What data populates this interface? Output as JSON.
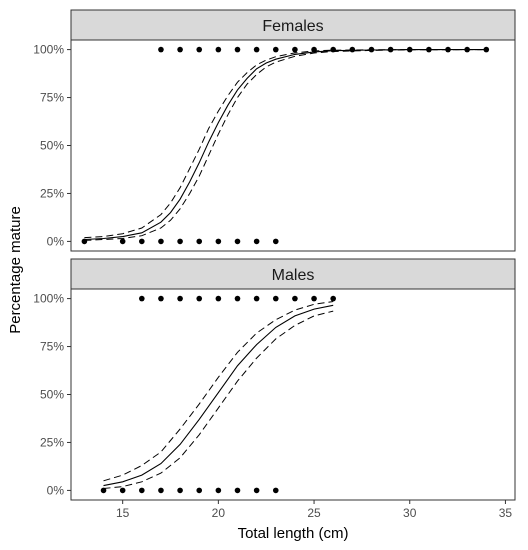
{
  "chart_data": {
    "type": "scatter",
    "xlabel": "Total length (cm)",
    "ylabel": "Percentage mature",
    "xlim": [
      12.3,
      35.5
    ],
    "ylim": [
      -0.05,
      1.05
    ],
    "x_ticks": [
      15,
      20,
      25,
      30,
      35
    ],
    "y_ticks": [
      0,
      0.25,
      0.5,
      0.75,
      1.0
    ],
    "y_tick_labels": [
      "0%",
      "25%",
      "50%",
      "75%",
      "100%"
    ],
    "grid": false,
    "panels": [
      {
        "strip_label": "Females",
        "points_mature": [
          17,
          18,
          19,
          20,
          21,
          22,
          23,
          24,
          25,
          26,
          27,
          28,
          29,
          30,
          31,
          32,
          33,
          34
        ],
        "points_immature": [
          13,
          15,
          16,
          17,
          18,
          19,
          20,
          21,
          22,
          23
        ],
        "curve_x": [
          13,
          14,
          15,
          16,
          17,
          17.5,
          18,
          18.5,
          19,
          19.5,
          20,
          20.5,
          21,
          21.5,
          22,
          22.5,
          23,
          24,
          25,
          26,
          28,
          30,
          34
        ],
        "curve_fit": [
          0.01,
          0.015,
          0.025,
          0.045,
          0.1,
          0.15,
          0.22,
          0.31,
          0.41,
          0.52,
          0.62,
          0.71,
          0.79,
          0.85,
          0.9,
          0.93,
          0.95,
          0.975,
          0.988,
          0.994,
          0.998,
          1.0,
          1.0
        ],
        "curve_lower": [
          0.005,
          0.01,
          0.015,
          0.03,
          0.07,
          0.11,
          0.17,
          0.25,
          0.34,
          0.45,
          0.56,
          0.66,
          0.75,
          0.82,
          0.87,
          0.91,
          0.935,
          0.965,
          0.982,
          0.99,
          0.996,
          0.999,
          1.0
        ],
        "curve_upper": [
          0.02,
          0.025,
          0.04,
          0.07,
          0.14,
          0.2,
          0.28,
          0.38,
          0.48,
          0.59,
          0.68,
          0.76,
          0.83,
          0.88,
          0.92,
          0.945,
          0.963,
          0.983,
          0.993,
          0.997,
          0.999,
          1.0,
          1.0
        ]
      },
      {
        "strip_label": "Males",
        "points_mature": [
          16,
          17,
          18,
          19,
          20,
          21,
          22,
          23,
          24,
          25,
          26
        ],
        "points_immature": [
          14,
          15,
          16,
          17,
          18,
          19,
          20,
          21,
          22,
          23
        ],
        "curve_x": [
          14,
          15,
          16,
          17,
          18,
          19,
          20,
          21,
          22,
          23,
          24,
          25,
          26
        ],
        "curve_fit": [
          0.025,
          0.045,
          0.08,
          0.14,
          0.24,
          0.37,
          0.51,
          0.65,
          0.76,
          0.85,
          0.91,
          0.945,
          0.965
        ],
        "curve_lower": [
          0.01,
          0.02,
          0.045,
          0.09,
          0.17,
          0.29,
          0.43,
          0.57,
          0.69,
          0.79,
          0.86,
          0.91,
          0.935
        ],
        "curve_upper": [
          0.05,
          0.08,
          0.13,
          0.2,
          0.32,
          0.45,
          0.59,
          0.72,
          0.82,
          0.89,
          0.94,
          0.97,
          0.985
        ]
      }
    ]
  }
}
